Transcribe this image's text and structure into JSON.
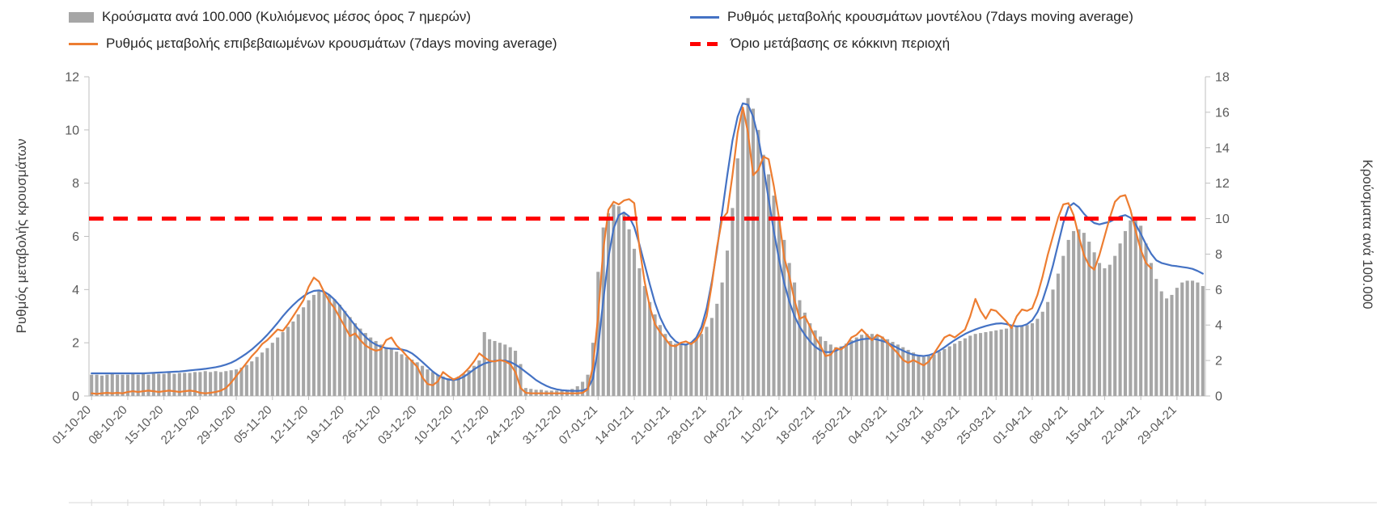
{
  "chart_data": {
    "type": "combo-bar-line",
    "title": "",
    "legend_position": "top",
    "grid": false,
    "x_axis": {
      "tick_every_days": 7,
      "tick_labels": [
        "01-10-20",
        "08-10-20",
        "15-10-20",
        "22-10-20",
        "29-10-20",
        "05-11-20",
        "12-11-20",
        "19-11-20",
        "26-11-20",
        "03-12-20",
        "10-12-20",
        "17-12-20",
        "24-12-20",
        "31-12-20",
        "07-01-21",
        "14-01-21",
        "21-01-21",
        "28-01-21",
        "04-02-21",
        "11-02-21",
        "18-02-21",
        "25-02-21",
        "04-03-21",
        "11-03-21",
        "18-03-21",
        "25-03-21",
        "01-04-21",
        "08-04-21",
        "15-04-21",
        "22-04-21",
        "29-04-21"
      ]
    },
    "left_axis": {
      "label": "Ρυθμός μεταβολής κρουσμάτων",
      "range": [
        0,
        12
      ],
      "ticks": [
        0,
        2,
        4,
        6,
        8,
        10,
        12
      ]
    },
    "right_axis": {
      "label": "Κρούσματα ανά 100.000",
      "range": [
        0,
        18
      ],
      "ticks": [
        0,
        2,
        4,
        6,
        8,
        10,
        12,
        14,
        16,
        18
      ]
    },
    "threshold": {
      "label": "Όριο μετάβασης σε κόκκινη περιοχή",
      "value_left_axis": 6.67,
      "value_right_axis": 10,
      "color": "#ff0000",
      "style": "dashed"
    },
    "series": [
      {
        "name": "Κρούσματα ανά 100.000 (Κυλιόμενος μέσος όρος 7 ημερών)",
        "type": "bar",
        "axis": "right",
        "color": "#a6a6a6",
        "values": [
          1.2,
          1.2,
          1.15,
          1.2,
          1.25,
          1.2,
          1.2,
          1.2,
          1.25,
          1.2,
          1.25,
          1.2,
          1.25,
          1.25,
          1.25,
          1.3,
          1.25,
          1.3,
          1.3,
          1.3,
          1.35,
          1.35,
          1.4,
          1.35,
          1.4,
          1.35,
          1.4,
          1.45,
          1.5,
          1.6,
          1.75,
          1.95,
          2.2,
          2.45,
          2.7,
          3.0,
          3.3,
          3.6,
          3.9,
          4.2,
          4.6,
          5.0,
          5.4,
          5.7,
          5.9,
          5.85,
          5.7,
          5.45,
          5.15,
          4.8,
          4.45,
          4.1,
          3.8,
          3.55,
          3.3,
          3.1,
          2.9,
          2.75,
          2.65,
          2.5,
          2.35,
          2.2,
          2.05,
          1.9,
          1.7,
          1.5,
          1.35,
          1.2,
          1.1,
          1.0,
          1.0,
          1.1,
          1.25,
          1.45,
          1.7,
          2.0,
          3.6,
          3.2,
          3.1,
          3.0,
          2.9,
          2.75,
          2.55,
          1.8,
          0.45,
          0.4,
          0.35,
          0.35,
          0.3,
          0.3,
          0.3,
          0.3,
          0.35,
          0.4,
          0.55,
          0.8,
          1.2,
          3.0,
          7.0,
          9.5,
          10.3,
          10.8,
          10.7,
          10.3,
          9.4,
          8.3,
          7.2,
          6.2,
          5.3,
          4.6,
          4.0,
          3.5,
          3.1,
          2.95,
          2.9,
          2.95,
          3.05,
          3.2,
          3.5,
          3.9,
          4.4,
          5.2,
          6.4,
          8.2,
          10.6,
          13.4,
          16.0,
          16.8,
          16.2,
          15.0,
          13.6,
          12.5,
          11.3,
          10.1,
          8.8,
          7.5,
          6.4,
          5.4,
          4.7,
          4.1,
          3.7,
          3.35,
          3.1,
          2.9,
          2.75,
          2.8,
          2.95,
          3.15,
          3.3,
          3.45,
          3.5,
          3.5,
          3.45,
          3.35,
          3.2,
          3.05,
          2.9,
          2.75,
          2.6,
          2.45,
          2.3,
          2.2,
          2.25,
          2.35,
          2.5,
          2.65,
          2.8,
          2.95,
          3.1,
          3.25,
          3.4,
          3.5,
          3.55,
          3.6,
          3.65,
          3.7,
          3.75,
          3.8,
          3.85,
          3.9,
          3.95,
          4.0,
          4.1,
          4.35,
          4.75,
          5.3,
          6.0,
          6.9,
          7.9,
          8.8,
          9.3,
          9.4,
          9.2,
          8.7,
          8.1,
          7.5,
          7.2,
          7.4,
          7.9,
          8.6,
          9.3,
          9.9,
          10.1,
          9.6,
          8.6,
          7.5,
          6.6,
          5.9,
          5.5,
          5.7,
          6.1,
          6.4,
          6.5,
          6.5,
          6.4,
          6.2
        ]
      },
      {
        "name": "Ρυθμός μεταβολής κρουσμάτων μοντέλου (7days moving average)",
        "type": "line",
        "axis": "left",
        "color": "#4472c4",
        "values": [
          0.85,
          0.85,
          0.85,
          0.85,
          0.85,
          0.85,
          0.85,
          0.85,
          0.85,
          0.85,
          0.85,
          0.86,
          0.87,
          0.88,
          0.89,
          0.9,
          0.91,
          0.92,
          0.94,
          0.96,
          0.98,
          1.0,
          1.02,
          1.05,
          1.08,
          1.12,
          1.18,
          1.25,
          1.35,
          1.47,
          1.6,
          1.75,
          1.92,
          2.1,
          2.3,
          2.52,
          2.75,
          3.0,
          3.22,
          3.42,
          3.6,
          3.75,
          3.87,
          3.95,
          3.97,
          3.92,
          3.8,
          3.62,
          3.4,
          3.15,
          2.9,
          2.65,
          2.42,
          2.22,
          2.05,
          1.93,
          1.85,
          1.8,
          1.78,
          1.77,
          1.75,
          1.7,
          1.6,
          1.45,
          1.28,
          1.1,
          0.92,
          0.78,
          0.68,
          0.62,
          0.6,
          0.63,
          0.72,
          0.85,
          1.0,
          1.12,
          1.22,
          1.28,
          1.32,
          1.34,
          1.33,
          1.28,
          1.18,
          1.05,
          0.9,
          0.75,
          0.6,
          0.48,
          0.38,
          0.3,
          0.25,
          0.22,
          0.2,
          0.19,
          0.19,
          0.2,
          0.28,
          0.65,
          1.8,
          3.6,
          5.2,
          6.3,
          6.8,
          6.9,
          6.75,
          6.35,
          5.7,
          4.95,
          4.2,
          3.5,
          2.95,
          2.55,
          2.25,
          2.05,
          1.95,
          1.93,
          2.0,
          2.2,
          2.6,
          3.3,
          4.3,
          5.5,
          6.9,
          8.3,
          9.6,
          10.5,
          11.0,
          10.95,
          10.5,
          9.7,
          8.6,
          7.4,
          6.2,
          5.15,
          4.25,
          3.55,
          3.0,
          2.6,
          2.3,
          2.05,
          1.85,
          1.72,
          1.65,
          1.65,
          1.7,
          1.8,
          1.9,
          2.0,
          2.08,
          2.13,
          2.15,
          2.15,
          2.12,
          2.07,
          2.0,
          1.9,
          1.8,
          1.7,
          1.62,
          1.55,
          1.52,
          1.5,
          1.53,
          1.6,
          1.7,
          1.83,
          1.97,
          2.1,
          2.22,
          2.33,
          2.42,
          2.5,
          2.57,
          2.63,
          2.68,
          2.72,
          2.73,
          2.7,
          2.65,
          2.62,
          2.63,
          2.7,
          2.85,
          3.15,
          3.6,
          4.2,
          4.9,
          5.7,
          6.5,
          7.1,
          7.25,
          7.1,
          6.85,
          6.65,
          6.5,
          6.45,
          6.5,
          6.55,
          6.65,
          6.75,
          6.8,
          6.7,
          6.45,
          6.1,
          5.7,
          5.35,
          5.1,
          5.0,
          4.95,
          4.9,
          4.88,
          4.85,
          4.82,
          4.78,
          4.7,
          4.6
        ]
      },
      {
        "name": "Ρυθμός μεταβολής επιβεβαιωμένων κρουσμάτων (7days moving average)",
        "type": "line",
        "axis": "left",
        "color": "#ed7d31",
        "values": [
          0.1,
          0.08,
          0.1,
          0.12,
          0.1,
          0.12,
          0.1,
          0.15,
          0.18,
          0.15,
          0.18,
          0.2,
          0.18,
          0.15,
          0.18,
          0.2,
          0.18,
          0.15,
          0.18,
          0.2,
          0.18,
          0.12,
          0.1,
          0.12,
          0.15,
          0.2,
          0.3,
          0.5,
          0.75,
          1.0,
          1.25,
          1.5,
          1.7,
          1.95,
          2.1,
          2.3,
          2.5,
          2.45,
          2.7,
          3.0,
          3.3,
          3.6,
          4.1,
          4.45,
          4.3,
          3.9,
          3.55,
          3.3,
          2.95,
          2.6,
          2.25,
          2.35,
          2.1,
          1.9,
          1.78,
          1.7,
          1.75,
          2.1,
          2.2,
          1.9,
          1.72,
          1.5,
          1.3,
          1.1,
          0.7,
          0.45,
          0.4,
          0.55,
          0.9,
          0.75,
          0.62,
          0.7,
          0.85,
          1.05,
          1.3,
          1.6,
          1.45,
          1.32,
          1.3,
          1.35,
          1.3,
          1.2,
          0.9,
          0.3,
          0.12,
          0.1,
          0.1,
          0.1,
          0.1,
          0.1,
          0.1,
          0.1,
          0.1,
          0.1,
          0.1,
          0.12,
          0.25,
          1.1,
          3.0,
          5.5,
          7.0,
          7.3,
          7.2,
          7.35,
          7.4,
          7.25,
          5.6,
          4.3,
          3.35,
          2.7,
          2.4,
          2.15,
          1.9,
          1.87,
          2.0,
          2.05,
          1.95,
          2.1,
          2.4,
          3.0,
          4.2,
          5.6,
          6.65,
          6.9,
          8.3,
          9.9,
          10.85,
          9.9,
          8.3,
          8.5,
          9.0,
          8.9,
          7.9,
          6.7,
          5.2,
          4.5,
          3.6,
          2.9,
          3.0,
          2.6,
          2.2,
          1.9,
          1.5,
          1.55,
          1.8,
          1.75,
          1.9,
          2.2,
          2.3,
          2.5,
          2.3,
          2.1,
          2.3,
          2.2,
          2.0,
          1.8,
          1.6,
          1.35,
          1.25,
          1.35,
          1.25,
          1.15,
          1.3,
          1.6,
          1.9,
          2.2,
          2.3,
          2.2,
          2.35,
          2.5,
          3.0,
          3.65,
          3.2,
          2.9,
          3.25,
          3.2,
          3.0,
          2.8,
          2.55,
          3.0,
          3.25,
          3.2,
          3.3,
          3.8,
          4.5,
          5.3,
          6.0,
          6.7,
          7.2,
          7.25,
          6.8,
          6.0,
          5.3,
          4.9,
          4.75,
          5.3,
          6.0,
          6.7,
          7.3,
          7.5,
          7.55,
          7.0,
          6.2,
          5.5,
          5.0,
          4.8,
          null,
          null,
          null,
          null,
          null,
          null,
          null,
          null,
          null,
          null
        ]
      }
    ],
    "style": {
      "bar_color": "#a6a6a6",
      "model_line_color": "#4472c4",
      "confirmed_line_color": "#ed7d31",
      "threshold_color": "#ff0000",
      "axis_color": "#bfbfbf",
      "tick_text_color": "#595959"
    }
  }
}
